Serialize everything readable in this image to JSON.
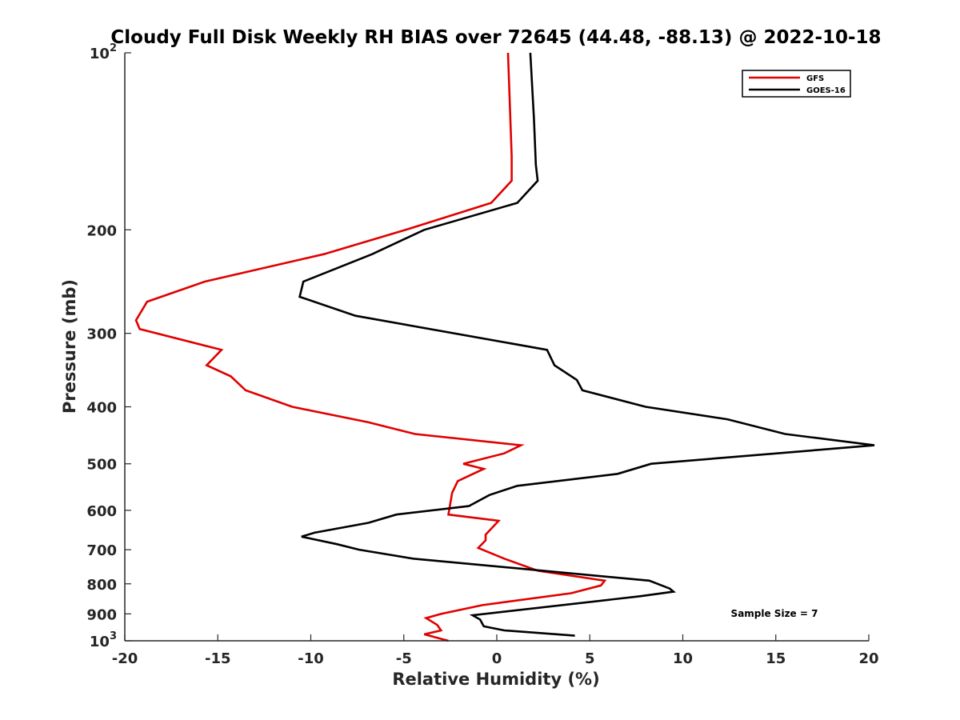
{
  "chart_data": {
    "type": "line",
    "title": "Cloudy Full Disk Weekly RH BIAS over 72645 (44.48, -88.13) @ 2022-10-18",
    "xlabel": "Relative Humidity (%)",
    "ylabel": "Pressure (mb)",
    "xlim": [
      -20,
      20
    ],
    "ylim": [
      100,
      1000
    ],
    "y_scale": "log",
    "y_reversed": true,
    "grid": false,
    "legend_position": "top-right",
    "x_ticks": [
      "-20",
      "-15",
      "-10",
      "-5",
      "0",
      "5",
      "10",
      "15",
      "20"
    ],
    "y_ticks": [
      {
        "value": 100,
        "label": "10",
        "sup": "2"
      },
      {
        "value": 200,
        "label": "200",
        "sup": ""
      },
      {
        "value": 300,
        "label": "300",
        "sup": ""
      },
      {
        "value": 400,
        "label": "400",
        "sup": ""
      },
      {
        "value": 500,
        "label": "500",
        "sup": ""
      },
      {
        "value": 600,
        "label": "600",
        "sup": ""
      },
      {
        "value": 700,
        "label": "700",
        "sup": ""
      },
      {
        "value": 800,
        "label": "800",
        "sup": ""
      },
      {
        "value": 900,
        "label": "900",
        "sup": ""
      },
      {
        "value": 1000,
        "label": "10",
        "sup": "3"
      }
    ],
    "series": [
      {
        "name": "GFS",
        "color": "#e00000",
        "points": [
          [
            0.6,
            100
          ],
          [
            0.8,
            150
          ],
          [
            0.8,
            165
          ],
          [
            -0.3,
            180
          ],
          [
            -4.9,
            200
          ],
          [
            -9.3,
            220
          ],
          [
            -15.7,
            245
          ],
          [
            -18.8,
            265
          ],
          [
            -19.4,
            285
          ],
          [
            -19.2,
            295
          ],
          [
            -14.8,
            320
          ],
          [
            -15.6,
            340
          ],
          [
            -14.3,
            355
          ],
          [
            -13.5,
            375
          ],
          [
            -11.0,
            400
          ],
          [
            -6.9,
            425
          ],
          [
            -4.4,
            445
          ],
          [
            1.3,
            465
          ],
          [
            0.4,
            480
          ],
          [
            -1.8,
            500
          ],
          [
            -0.7,
            510
          ],
          [
            -2.1,
            535
          ],
          [
            -2.4,
            560
          ],
          [
            -2.6,
            610
          ],
          [
            0.1,
            625
          ],
          [
            -0.6,
            660
          ],
          [
            -0.6,
            675
          ],
          [
            -1.0,
            695
          ],
          [
            0.4,
            725
          ],
          [
            2.2,
            760
          ],
          [
            5.8,
            790
          ],
          [
            5.6,
            805
          ],
          [
            4.0,
            830
          ],
          [
            -0.8,
            870
          ],
          [
            -3.0,
            900
          ],
          [
            -3.8,
            915
          ],
          [
            -3.2,
            940
          ],
          [
            -3.0,
            960
          ],
          [
            -3.9,
            975
          ],
          [
            -2.6,
            1000
          ]
        ]
      },
      {
        "name": "GOES-16",
        "color": "#000000",
        "points": [
          [
            1.8,
            100
          ],
          [
            2.0,
            130
          ],
          [
            2.1,
            155
          ],
          [
            2.2,
            165
          ],
          [
            1.1,
            180
          ],
          [
            -3.9,
            200
          ],
          [
            -6.7,
            220
          ],
          [
            -10.4,
            245
          ],
          [
            -10.6,
            260
          ],
          [
            -7.6,
            280
          ],
          [
            2.7,
            320
          ],
          [
            3.1,
            340
          ],
          [
            4.3,
            360
          ],
          [
            4.6,
            375
          ],
          [
            8.0,
            400
          ],
          [
            12.4,
            420
          ],
          [
            15.5,
            445
          ],
          [
            20.3,
            465
          ],
          [
            8.3,
            500
          ],
          [
            6.5,
            520
          ],
          [
            1.1,
            545
          ],
          [
            -0.4,
            565
          ],
          [
            -1.5,
            590
          ],
          [
            -5.4,
            610
          ],
          [
            -6.9,
            630
          ],
          [
            -9.8,
            655
          ],
          [
            -10.5,
            665
          ],
          [
            -8.6,
            685
          ],
          [
            -7.4,
            700
          ],
          [
            -4.5,
            725
          ],
          [
            8.2,
            790
          ],
          [
            9.3,
            815
          ],
          [
            9.5,
            825
          ],
          [
            7.7,
            840
          ],
          [
            -1.3,
            905
          ],
          [
            -0.9,
            920
          ],
          [
            -0.7,
            945
          ],
          [
            0.4,
            960
          ],
          [
            4.2,
            980
          ]
        ]
      }
    ],
    "annotation": "Sample Size = 7"
  }
}
